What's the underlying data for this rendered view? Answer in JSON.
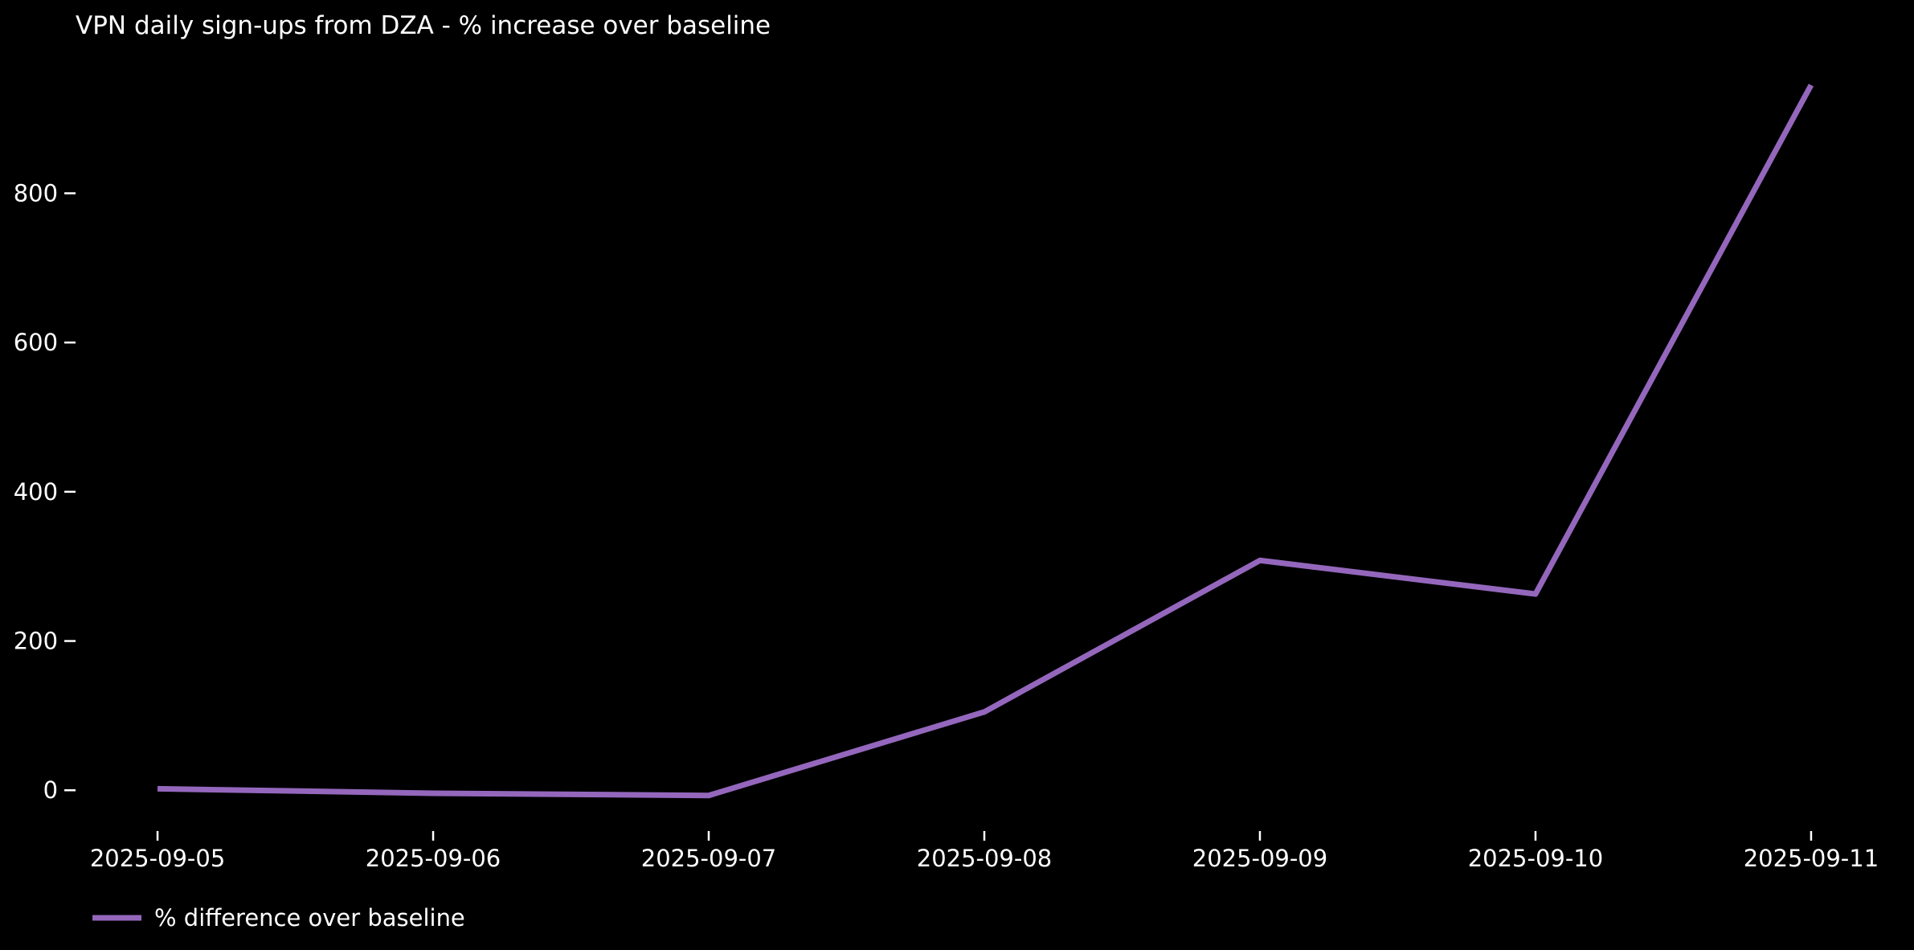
{
  "chart_data": {
    "type": "line",
    "title": "VPN daily sign-ups from DZA - % increase over baseline",
    "x": [
      "2025-09-05",
      "2025-09-06",
      "2025-09-07",
      "2025-09-08",
      "2025-09-09",
      "2025-09-10",
      "2025-09-11"
    ],
    "series": [
      {
        "name": "% difference over baseline",
        "values": [
          2,
          -4,
          -7,
          105,
          308,
          263,
          945
        ],
        "color": "#9467bd"
      }
    ],
    "xlabel": "",
    "ylabel": "",
    "y_ticks": [
      0,
      200,
      400,
      600,
      800
    ],
    "ylim": [
      -52,
      1000
    ],
    "grid": false,
    "legend_position": "lower-left",
    "background_color": "#000000",
    "text_color": "#ffffff"
  }
}
